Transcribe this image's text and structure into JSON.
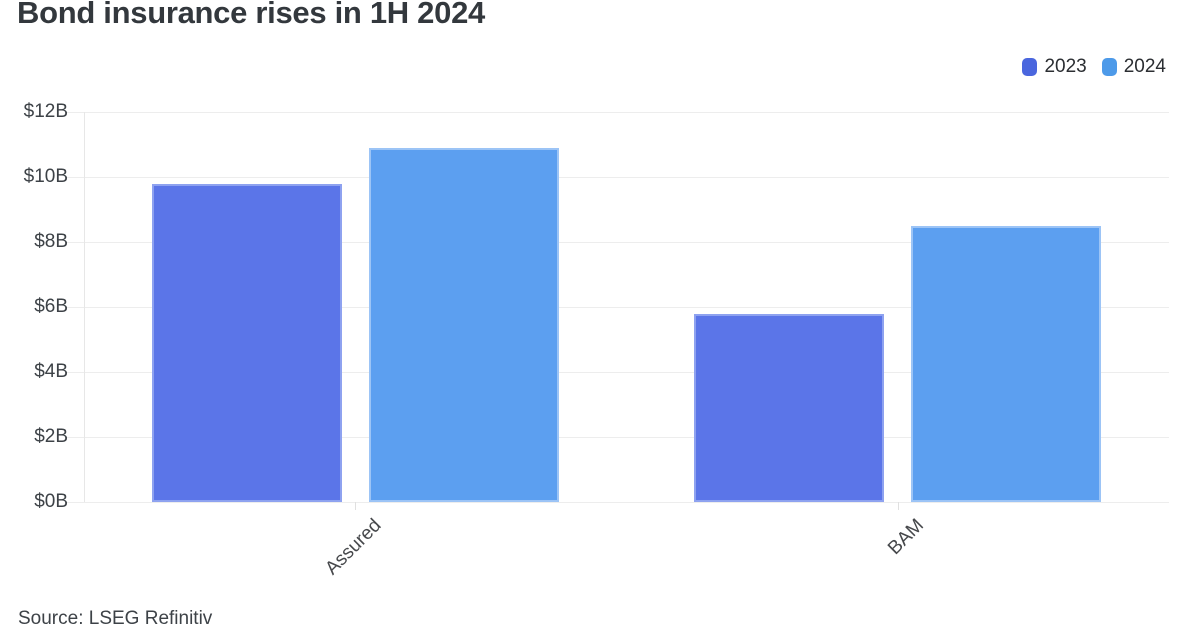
{
  "title": "Bond insurance rises in 1H 2024",
  "source": "Source: LSEG Refinitiv",
  "legend": [
    {
      "label": "2023",
      "color": "#4a66de"
    },
    {
      "label": "2024",
      "color": "#4d9ae9"
    }
  ],
  "colors": {
    "background": "#ffffff",
    "gridline": "#ededed",
    "axis_line": "#e7e7e7",
    "title_text": "#33383d",
    "tick_text": "#3d4247"
  },
  "chart_data": {
    "type": "bar",
    "title": "Bond insurance rises in 1H 2024",
    "categories": [
      "Assured",
      "BAM"
    ],
    "series": [
      {
        "name": "2023",
        "color": "#5b75e8",
        "edge_color": "#8ea2f0",
        "values": [
          9.8,
          5.8
        ]
      },
      {
        "name": "2024",
        "color": "#5c9ff0",
        "edge_color": "#9cc4f6",
        "values": [
          10.9,
          8.5
        ]
      }
    ],
    "xlabel": "",
    "ylabel": "",
    "ylim": [
      0,
      12
    ],
    "yticks": [
      {
        "value": 0,
        "label": "$0B"
      },
      {
        "value": 2,
        "label": "$2B"
      },
      {
        "value": 4,
        "label": "$4B"
      },
      {
        "value": 6,
        "label": "$6B"
      },
      {
        "value": 8,
        "label": "$8B"
      },
      {
        "value": 10,
        "label": "$10B"
      },
      {
        "value": 12,
        "label": "$12B"
      }
    ],
    "grid": true,
    "legend_position": "top-right",
    "units": "billions USD"
  }
}
